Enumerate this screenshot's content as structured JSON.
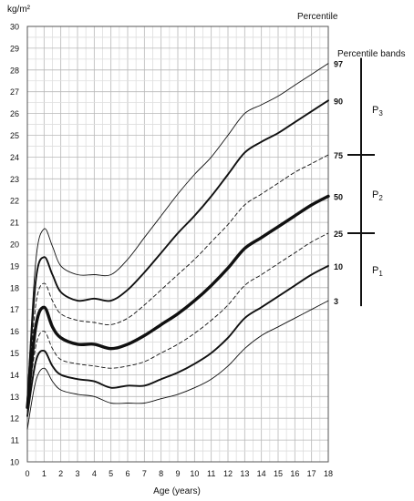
{
  "chart_data": {
    "type": "line",
    "title": "",
    "ylabel": "kg/m²",
    "xlabel": "Age (years)",
    "legend_title": "Percentile",
    "bands_title": "Percentile bands",
    "xlim": [
      0,
      18
    ],
    "ylim": [
      10,
      30
    ],
    "x_ticks": [
      "0",
      "1",
      "2",
      "3",
      "4",
      "5",
      "6",
      "7",
      "8",
      "9",
      "10",
      "11",
      "12",
      "13",
      "14",
      "15",
      "16",
      "17",
      "18"
    ],
    "y_ticks": [
      "10",
      "11",
      "12",
      "13",
      "14",
      "15",
      "16",
      "17",
      "18",
      "19",
      "20",
      "21",
      "22",
      "23",
      "24",
      "25",
      "26",
      "27",
      "28",
      "29",
      "30"
    ],
    "grid": true,
    "x": [
      0,
      0.5,
      1,
      1.5,
      2,
      3,
      4,
      5,
      6,
      7,
      8,
      9,
      10,
      11,
      12,
      13,
      14,
      15,
      16,
      17,
      18
    ],
    "series": [
      {
        "name": "97",
        "style": "thin",
        "values": [
          13.0,
          19.2,
          20.7,
          19.9,
          19.0,
          18.6,
          18.6,
          18.6,
          19.3,
          20.3,
          21.3,
          22.3,
          23.2,
          24.0,
          25.0,
          26.0,
          26.4,
          26.8,
          27.3,
          27.8,
          28.3
        ]
      },
      {
        "name": "90",
        "style": "medium",
        "values": [
          12.8,
          18.3,
          19.4,
          18.6,
          17.8,
          17.4,
          17.5,
          17.4,
          17.9,
          18.7,
          19.6,
          20.5,
          21.3,
          22.2,
          23.2,
          24.2,
          24.7,
          25.1,
          25.6,
          26.1,
          26.6
        ]
      },
      {
        "name": "75",
        "style": "dashed",
        "values": [
          12.7,
          17.2,
          18.2,
          17.4,
          16.8,
          16.5,
          16.4,
          16.3,
          16.6,
          17.2,
          17.9,
          18.6,
          19.3,
          20.1,
          20.9,
          21.8,
          22.3,
          22.8,
          23.3,
          23.7,
          24.1
        ]
      },
      {
        "name": "50",
        "style": "thick",
        "values": [
          12.5,
          16.2,
          17.1,
          16.2,
          15.7,
          15.4,
          15.4,
          15.2,
          15.4,
          15.8,
          16.3,
          16.8,
          17.4,
          18.1,
          18.9,
          19.8,
          20.3,
          20.8,
          21.3,
          21.8,
          22.2
        ]
      },
      {
        "name": "25",
        "style": "dashed",
        "values": [
          12.3,
          15.3,
          16.0,
          15.2,
          14.7,
          14.5,
          14.4,
          14.3,
          14.4,
          14.6,
          15.0,
          15.4,
          15.9,
          16.5,
          17.2,
          18.1,
          18.6,
          19.1,
          19.6,
          20.1,
          20.5
        ]
      },
      {
        "name": "10",
        "style": "medium",
        "values": [
          12.1,
          14.6,
          15.1,
          14.4,
          14.0,
          13.8,
          13.7,
          13.4,
          13.5,
          13.5,
          13.8,
          14.1,
          14.5,
          15.0,
          15.7,
          16.6,
          17.1,
          17.6,
          18.1,
          18.6,
          19.0
        ]
      },
      {
        "name": "3",
        "style": "thin",
        "values": [
          11.5,
          13.7,
          14.3,
          13.7,
          13.3,
          13.1,
          13.0,
          12.7,
          12.7,
          12.7,
          12.9,
          13.1,
          13.4,
          13.8,
          14.4,
          15.2,
          15.8,
          16.2,
          16.6,
          17.0,
          17.4
        ]
      }
    ],
    "bands": [
      {
        "label": "P",
        "sub": "3"
      },
      {
        "label": "P",
        "sub": "2"
      },
      {
        "label": "P",
        "sub": "1"
      }
    ]
  }
}
